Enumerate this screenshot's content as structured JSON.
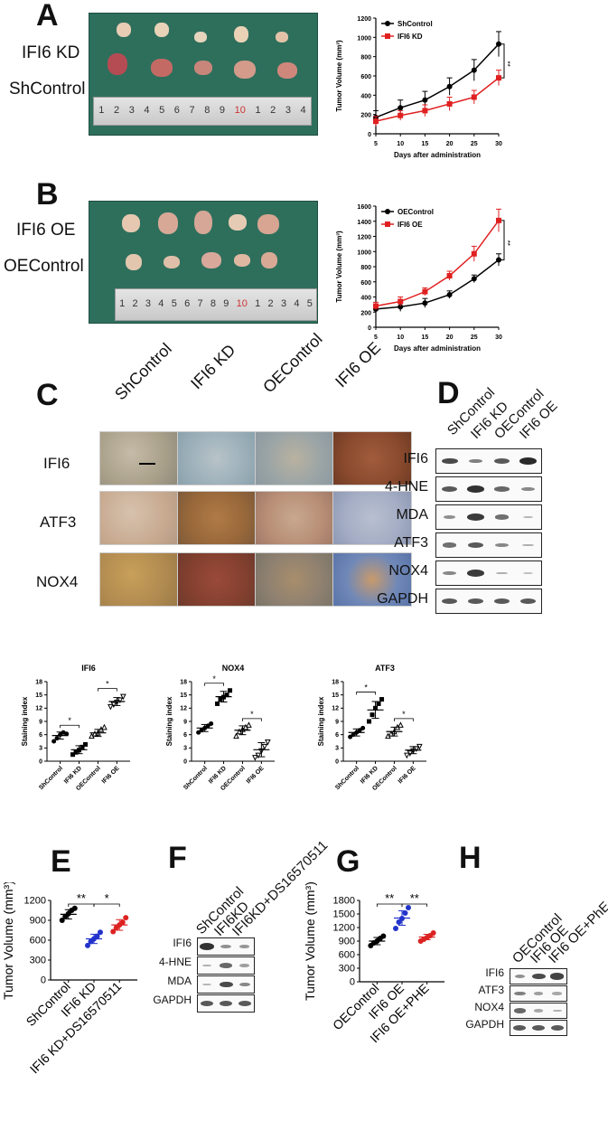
{
  "panels": {
    "A": {
      "letter": "A",
      "labels": [
        "IFI6 KD",
        "ShControl"
      ],
      "ruler_ticks": [
        "1",
        "2",
        "3",
        "4",
        "5",
        "6",
        "7",
        "8",
        "9",
        "10",
        "1",
        "2",
        "3",
        "4"
      ]
    },
    "B": {
      "letter": "B",
      "labels": [
        "IFI6 OE",
        "OEControl"
      ],
      "ruler_ticks": [
        "1",
        "2",
        "3",
        "4",
        "5",
        "6",
        "7",
        "8",
        "9",
        "10",
        "1",
        "2",
        "3",
        "4",
        "5"
      ]
    },
    "C": {
      "letter": "C",
      "columns": [
        "ShControl",
        "IFI6 KD",
        "OEControl",
        "IFI6 OE"
      ],
      "rows": [
        "IFI6",
        "ATF3",
        "NOX4"
      ]
    },
    "D": {
      "letter": "D",
      "columns": [
        "ShControl",
        "IFI6 KD",
        "OEControl",
        "IFI6 OE"
      ],
      "rows": [
        "IFI6",
        "4-HNE",
        "MDA",
        "ATF3",
        "NOX4",
        "GAPDH"
      ]
    },
    "E": {
      "letter": "E"
    },
    "F": {
      "letter": "F",
      "columns": [
        "ShControl",
        "IFI6KD",
        "IFI6KD+DS16570511"
      ],
      "rows": [
        "IFI6",
        "4-HNE",
        "MDA",
        "GAPDH"
      ]
    },
    "G": {
      "letter": "G"
    },
    "H": {
      "letter": "H",
      "columns": [
        "OEControl",
        "IFI6 OE",
        "IFI6 OE+PhE"
      ],
      "rows": [
        "IFI6",
        "ATF3",
        "NOX4",
        "GAPDH"
      ]
    }
  },
  "chart_data": [
    {
      "id": "A-line",
      "type": "line",
      "xlabel": "Days after administration",
      "ylabel": "Tumor Volume (mm³)",
      "x": [
        5,
        10,
        15,
        20,
        25,
        30
      ],
      "ylim": [
        0,
        1200
      ],
      "yticks": [
        0,
        200,
        400,
        600,
        800,
        1000,
        1200
      ],
      "series": [
        {
          "name": "ShControl",
          "color": "#000000",
          "values": [
            170,
            270,
            350,
            490,
            660,
            930
          ],
          "err": [
            70,
            80,
            90,
            90,
            110,
            130
          ]
        },
        {
          "name": "IFI6 KD",
          "color": "#e02020",
          "values": [
            130,
            190,
            240,
            310,
            380,
            580
          ],
          "err": [
            50,
            50,
            60,
            70,
            70,
            80
          ]
        }
      ],
      "annotation": "**"
    },
    {
      "id": "B-line",
      "type": "line",
      "xlabel": "Days after administration",
      "ylabel": "Tumor Volume (mm³)",
      "x": [
        5,
        10,
        15,
        20,
        25,
        30
      ],
      "ylim": [
        0,
        1600
      ],
      "yticks": [
        0,
        200,
        400,
        600,
        800,
        1000,
        1200,
        1400,
        1600
      ],
      "series": [
        {
          "name": "OEControl",
          "color": "#000000",
          "values": [
            240,
            270,
            320,
            430,
            640,
            890
          ],
          "err": [
            40,
            60,
            60,
            50,
            50,
            80
          ]
        },
        {
          "name": "IFI6 OE",
          "color": "#e02020",
          "values": [
            280,
            340,
            470,
            680,
            970,
            1410
          ],
          "err": [
            50,
            60,
            50,
            60,
            100,
            150
          ]
        }
      ],
      "annotation": "**"
    },
    {
      "id": "C-IFI6",
      "type": "scatter",
      "title": "IFI6",
      "ylabel": "Staining index",
      "ylim": [
        0,
        18
      ],
      "yticks": [
        0,
        3,
        6,
        9,
        12,
        15,
        18
      ],
      "categories": [
        "ShControl",
        "IFI6 KD",
        "OEControl",
        "IFI6 OE"
      ],
      "points": [
        [
          4.5,
          5.2,
          6.0,
          6.5,
          6.2
        ],
        [
          1.5,
          2.0,
          2.5,
          3.2,
          3.8
        ],
        [
          5.5,
          6.0,
          6.2,
          7.0,
          7.5
        ],
        [
          12.5,
          13.0,
          13.5,
          14.0,
          14.8
        ]
      ],
      "means": [
        5.8,
        2.6,
        6.4,
        13.5
      ],
      "sd": [
        0.8,
        0.9,
        0.8,
        0.9
      ],
      "significance": [
        {
          "pair": [
            0,
            1
          ],
          "label": "*"
        },
        {
          "pair": [
            2,
            3
          ],
          "label": "*"
        }
      ]
    },
    {
      "id": "C-NOX4",
      "type": "scatter",
      "title": "NOX4",
      "ylabel": "Staining index",
      "ylim": [
        0,
        18
      ],
      "yticks": [
        0,
        3,
        6,
        9,
        12,
        15,
        18
      ],
      "categories": [
        "ShControl",
        "IFI6 KD",
        "OEControl",
        "IFI6 OE"
      ],
      "points": [
        [
          6.5,
          7.0,
          7.5,
          8.0,
          8.5
        ],
        [
          13.0,
          14.0,
          14.5,
          15.0,
          16.0
        ],
        [
          5.5,
          6.5,
          7.0,
          7.5,
          8.0
        ],
        [
          1.0,
          1.5,
          2.5,
          3.5,
          4.5
        ]
      ],
      "means": [
        7.5,
        14.6,
        7.0,
        2.6
      ],
      "sd": [
        0.8,
        1.2,
        1.0,
        1.6
      ],
      "significance": [
        {
          "pair": [
            0,
            1
          ],
          "label": "*"
        },
        {
          "pair": [
            2,
            3
          ],
          "label": "*"
        }
      ]
    },
    {
      "id": "C-ATF3",
      "type": "scatter",
      "title": "ATF3",
      "ylabel": "Staining index",
      "ylim": [
        0,
        18
      ],
      "yticks": [
        0,
        3,
        6,
        9,
        12,
        15,
        18
      ],
      "categories": [
        "ShControl",
        "IFI6 KD",
        "OEControl",
        "IFI6 OE"
      ],
      "points": [
        [
          5.5,
          6.0,
          6.5,
          7.0,
          7.5
        ],
        [
          9.0,
          10.5,
          12.0,
          13.0,
          14.0
        ],
        [
          5.5,
          6.0,
          6.5,
          7.5,
          8.0
        ],
        [
          1.5,
          2.0,
          2.5,
          3.0,
          3.5
        ]
      ],
      "means": [
        6.5,
        11.6,
        6.7,
        2.5
      ],
      "sd": [
        0.8,
        1.9,
        1.0,
        0.8
      ],
      "significance": [
        {
          "pair": [
            0,
            1
          ],
          "label": "*"
        },
        {
          "pair": [
            2,
            3
          ],
          "label": "*"
        }
      ]
    },
    {
      "id": "E-scatter",
      "type": "scatter",
      "ylabel": "Tumor Volume (mm³)",
      "ylim": [
        0,
        1200
      ],
      "yticks": [
        0,
        300,
        600,
        900,
        1200
      ],
      "categories": [
        "ShControl",
        "IFI6 KD",
        "IFI6 KD+DS16570511"
      ],
      "colors": [
        "#000000",
        "#2233cc",
        "#dd2222"
      ],
      "points": [
        [
          900,
          960,
          1000,
          1050,
          1080
        ],
        [
          520,
          580,
          620,
          660,
          720
        ],
        [
          730,
          790,
          830,
          870,
          940
        ]
      ],
      "means": [
        990,
        620,
        830
      ],
      "sd": [
        70,
        70,
        80
      ],
      "significance": [
        {
          "pair": [
            0,
            1
          ],
          "label": "**"
        },
        {
          "pair": [
            1,
            2
          ],
          "label": "*"
        }
      ]
    },
    {
      "id": "G-scatter",
      "type": "scatter",
      "ylabel": "Tumor Volume (mm³)",
      "ylim": [
        0,
        1800
      ],
      "yticks": [
        0,
        300,
        600,
        900,
        1200,
        1500,
        1800
      ],
      "categories": [
        "OEControl",
        "IFI6 OE",
        "IFI6 OE+PHE"
      ],
      "colors": [
        "#000000",
        "#2233cc",
        "#dd2222"
      ],
      "points": [
        [
          800,
          860,
          900,
          960,
          1010
        ],
        [
          1180,
          1320,
          1400,
          1520,
          1640
        ],
        [
          900,
          940,
          980,
          1020,
          1080
        ]
      ],
      "means": [
        900,
        1410,
        990
      ],
      "sd": [
        80,
        160,
        60
      ],
      "significance": [
        {
          "pair": [
            0,
            1
          ],
          "label": "**"
        },
        {
          "pair": [
            1,
            2
          ],
          "label": "**"
        }
      ]
    }
  ]
}
